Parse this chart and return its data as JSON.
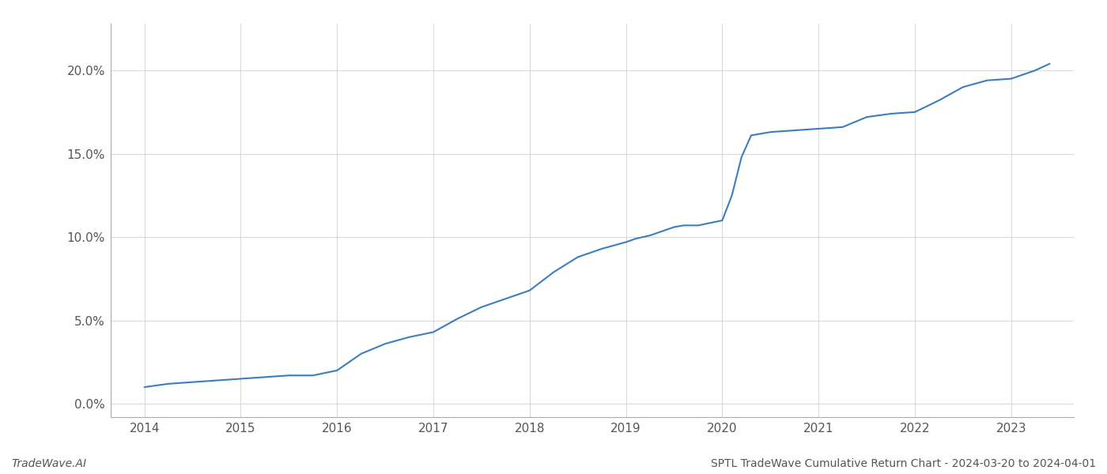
{
  "title": "",
  "footer_left": "TradeWave.AI",
  "footer_right": "SPTL TradeWave Cumulative Return Chart - 2024-03-20 to 2024-04-01",
  "line_color": "#3a7ebf",
  "background_color": "#ffffff",
  "grid_color": "#cccccc",
  "x_years": [
    2014,
    2015,
    2016,
    2017,
    2018,
    2019,
    2020,
    2021,
    2022,
    2023
  ],
  "x_data": [
    2014.0,
    2014.25,
    2014.5,
    2014.75,
    2015.0,
    2015.25,
    2015.5,
    2015.75,
    2016.0,
    2016.25,
    2016.5,
    2016.75,
    2017.0,
    2017.25,
    2017.5,
    2017.75,
    2018.0,
    2018.25,
    2018.5,
    2018.75,
    2019.0,
    2019.1,
    2019.25,
    2019.4,
    2019.5,
    2019.6,
    2019.75,
    2020.0,
    2020.1,
    2020.2,
    2020.3,
    2020.5,
    2020.75,
    2021.0,
    2021.25,
    2021.5,
    2021.75,
    2022.0,
    2022.25,
    2022.5,
    2022.75,
    2023.0,
    2023.25,
    2023.4
  ],
  "y_data": [
    0.01,
    0.012,
    0.013,
    0.014,
    0.015,
    0.016,
    0.017,
    0.017,
    0.02,
    0.03,
    0.036,
    0.04,
    0.043,
    0.051,
    0.058,
    0.063,
    0.068,
    0.079,
    0.088,
    0.093,
    0.097,
    0.099,
    0.101,
    0.104,
    0.106,
    0.107,
    0.107,
    0.11,
    0.125,
    0.148,
    0.161,
    0.163,
    0.164,
    0.165,
    0.166,
    0.172,
    0.174,
    0.175,
    0.182,
    0.19,
    0.194,
    0.195,
    0.2,
    0.204
  ],
  "yticks": [
    0.0,
    0.05,
    0.1,
    0.15,
    0.2
  ],
  "ytick_labels": [
    "0.0%",
    "5.0%",
    "10.0%",
    "15.0%",
    "20.0%"
  ],
  "ylim": [
    -0.008,
    0.228
  ],
  "xlim": [
    2013.65,
    2023.65
  ]
}
